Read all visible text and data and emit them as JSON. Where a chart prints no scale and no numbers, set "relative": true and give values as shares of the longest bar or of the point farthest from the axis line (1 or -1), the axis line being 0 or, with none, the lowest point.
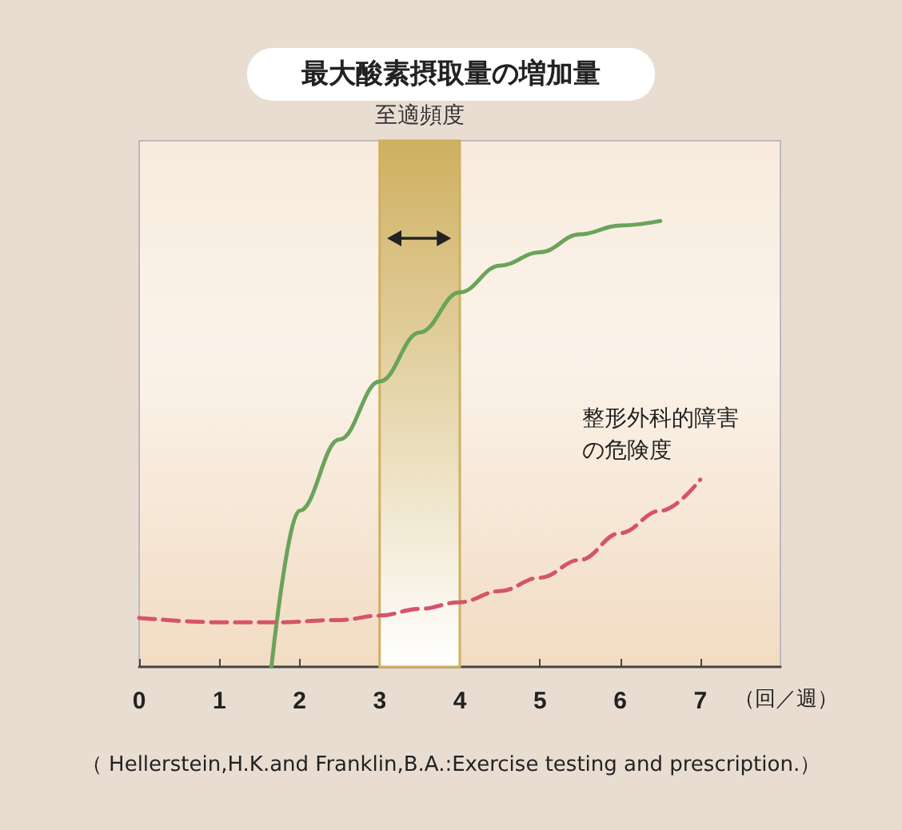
{
  "chart_data": {
    "type": "line",
    "title": "最大酸素摂取量の増加量",
    "xlabel": "（回／週）",
    "relative": true,
    "xlim": [
      0,
      8
    ],
    "xticks": [
      0,
      1,
      2,
      3,
      4,
      5,
      6,
      7
    ],
    "series": [
      {
        "color": "#6aa35a",
        "line_style": "solid",
        "x": [
          1.65,
          2,
          2.5,
          3,
          3.5,
          4,
          4.5,
          5,
          5.5,
          6,
          6.5
        ],
        "values": [
          0,
          0.35,
          0.51,
          0.64,
          0.75,
          0.84,
          0.9,
          0.93,
          0.97,
          0.99,
          1
        ]
      },
      {
        "name": "整形外科的障害の危険度",
        "color": "#d5546a",
        "line_style": "dashed",
        "x": [
          0,
          1,
          1.7,
          2.5,
          3,
          3.5,
          4,
          4.5,
          5,
          5.5,
          6,
          6.5,
          7
        ],
        "values": [
          0.11,
          0.1,
          0.1,
          0.105,
          0.115,
          0.13,
          0.145,
          0.17,
          0.2,
          0.24,
          0.3,
          0.35,
          0.42
        ]
      }
    ],
    "bands": [
      {
        "axis": "x",
        "from": 3,
        "to": 4,
        "label": "至適頻度",
        "color": "#cfb060"
      }
    ],
    "marker": "none",
    "grid": false,
    "legend": false,
    "annotations": [
      "（ Hellerstein,H.K.and Franklin,B.A.:Exercise testing and prescription.）"
    ]
  }
}
